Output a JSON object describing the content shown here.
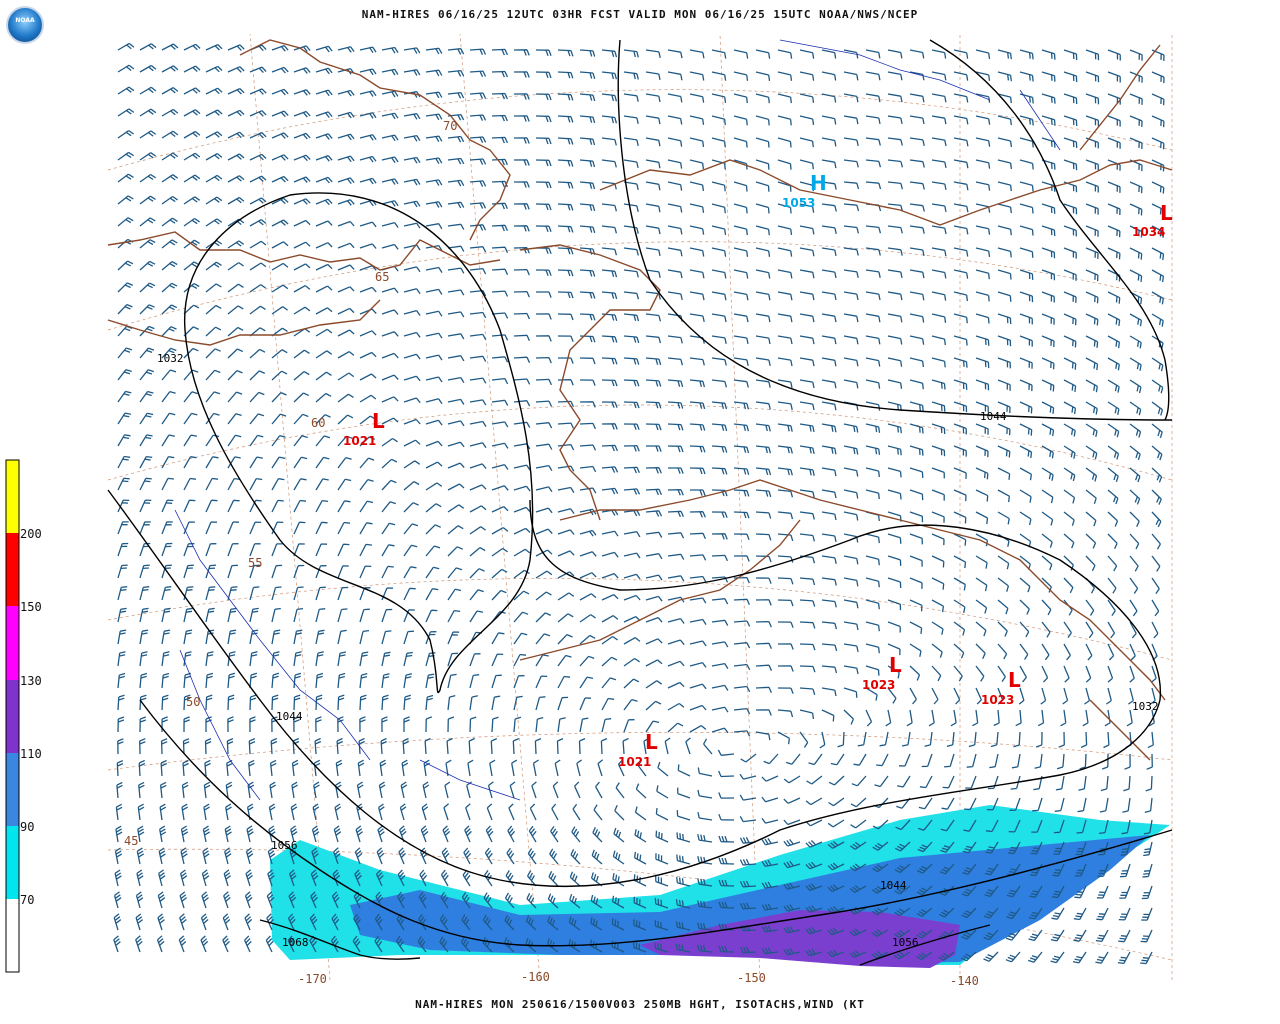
{
  "header": {
    "title": "NAM-HIRES 06/16/25 12UTC 03HR FCST VALID MON 06/16/25 15UTC NOAA/NWS/NCEP",
    "logo_text": "NOAA"
  },
  "footer": {
    "caption": "NAM-HIRES MON 250616/1500V003 250MB HGHT, ISOTACHS,WIND (KT"
  },
  "legend": {
    "title": "isotach color bar (kt)",
    "levels": [
      {
        "value": "200",
        "color": "#ffff00"
      },
      {
        "value": "150",
        "color": "#ff0000"
      },
      {
        "value": "130",
        "color": "#ff00ff"
      },
      {
        "value": "110",
        "color": "#7f33cc"
      },
      {
        "value": "90",
        "color": "#3a86e0"
      },
      {
        "value": "70",
        "color": "#00e5ee"
      }
    ]
  },
  "map": {
    "colors": {
      "coastline": "#8b4a2b",
      "barbs": "#1f5a86",
      "height_contour": "#000000",
      "low": "#e00000",
      "high": "#00a8e8",
      "isotach_70": "#20e0e8",
      "isotach_90": "#2f7fe0",
      "isotach_110": "#7a3fcf"
    },
    "pressure_centers": [
      {
        "type": "L",
        "value": "1021"
      },
      {
        "type": "H",
        "value": "1053"
      },
      {
        "type": "L",
        "value": "1034"
      },
      {
        "type": "L",
        "value": "1023"
      },
      {
        "type": "L",
        "value": "1023"
      },
      {
        "type": "L",
        "value": "1021"
      }
    ],
    "contour_labels": [
      "1032",
      "1044",
      "1044",
      "1056",
      "1068",
      "1044",
      "1056",
      "1032"
    ],
    "latitude_labels": [
      "70",
      "65",
      "60",
      "55",
      "50",
      "45"
    ],
    "longitude_labels": [
      "-170",
      "-160",
      "-150",
      "-140"
    ]
  }
}
